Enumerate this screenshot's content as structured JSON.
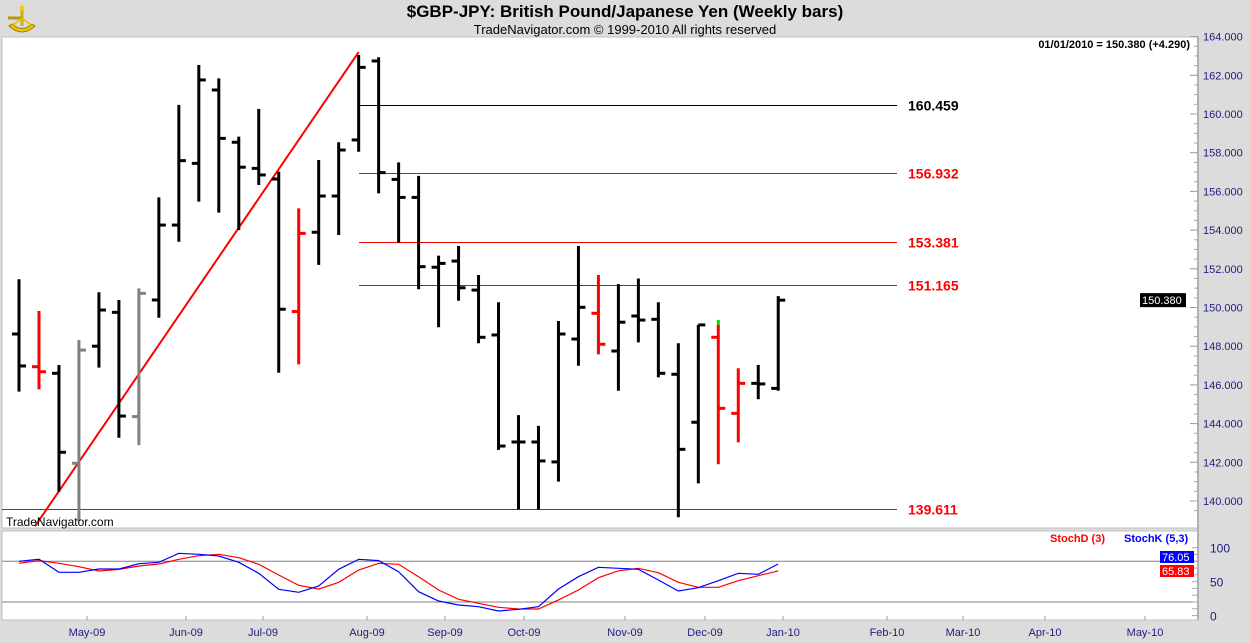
{
  "header": {
    "title": "$GBP-JPY:  British Pound/Japanese Yen  (Weekly bars)",
    "subtitle": "TradeNavigator.com © 1999-2010 All rights reserved",
    "last_quote": "01/01/2010 = 150.380 (+4.290)",
    "watermark": "TradeNavigator.com"
  },
  "chart_data": [
    {
      "type": "ohlc",
      "title": "$GBP-JPY:  British Pound/Japanese Yen  (Weekly bars)",
      "ylim": [
        139,
        164
      ],
      "y_ticks": [
        "164.000",
        "162.000",
        "160.000",
        "158.000",
        "156.000",
        "154.000",
        "152.000",
        "150.000",
        "148.000",
        "146.000",
        "144.000",
        "142.000",
        "140.000"
      ],
      "x_tick_labels": [
        "May-09",
        "Jun-09",
        "Jul-09",
        "Aug-09",
        "Sep-09",
        "Oct-09",
        "Nov-09",
        "Dec-09",
        "Jan-10",
        "Feb-10",
        "Mar-10",
        "Apr-10",
        "May-10"
      ],
      "last_price_label": "150.380",
      "colors": {
        "up": "#000000",
        "down": "#ff0000",
        "neutral": "#808080",
        "trendline": "#ff0000",
        "new_high": "#00dd00"
      },
      "bars": [
        {
          "o": 148.63,
          "h": 151.46,
          "l": 145.65,
          "c": 146.98,
          "color": "#000000"
        },
        {
          "o": 146.94,
          "h": 149.82,
          "l": 145.77,
          "c": 146.68,
          "color": "#ff0000"
        },
        {
          "o": 146.6,
          "h": 147.03,
          "l": 140.48,
          "c": 142.52,
          "color": "#000000"
        },
        {
          "o": 141.95,
          "h": 148.32,
          "l": 138.97,
          "c": 147.8,
          "color": "#808080"
        },
        {
          "o": 148.0,
          "h": 150.79,
          "l": 146.89,
          "c": 149.87,
          "color": "#000000"
        },
        {
          "o": 149.75,
          "h": 150.39,
          "l": 143.27,
          "c": 144.39,
          "color": "#000000"
        },
        {
          "o": 144.36,
          "h": 150.99,
          "l": 142.89,
          "c": 150.73,
          "color": "#808080"
        },
        {
          "o": 150.39,
          "h": 155.69,
          "l": 149.47,
          "c": 154.26,
          "color": "#000000"
        },
        {
          "o": 154.26,
          "h": 160.47,
          "l": 153.4,
          "c": 157.59,
          "color": "#000000"
        },
        {
          "o": 157.45,
          "h": 162.53,
          "l": 155.47,
          "c": 161.76,
          "color": "#000000"
        },
        {
          "o": 161.24,
          "h": 161.84,
          "l": 154.9,
          "c": 158.74,
          "color": "#000000"
        },
        {
          "o": 158.54,
          "h": 158.83,
          "l": 154.0,
          "c": 157.25,
          "color": "#000000"
        },
        {
          "o": 157.19,
          "h": 160.26,
          "l": 156.33,
          "c": 156.85,
          "color": "#000000"
        },
        {
          "o": 156.64,
          "h": 157.02,
          "l": 146.63,
          "c": 149.91,
          "color": "#000000"
        },
        {
          "o": 149.79,
          "h": 155.12,
          "l": 147.06,
          "c": 153.83,
          "color": "#ff0000"
        },
        {
          "o": 153.89,
          "h": 157.62,
          "l": 152.2,
          "c": 155.76,
          "color": "#000000"
        },
        {
          "o": 155.76,
          "h": 158.54,
          "l": 153.75,
          "c": 158.14,
          "color": "#000000"
        },
        {
          "o": 158.66,
          "h": 163.05,
          "l": 158.05,
          "c": 162.41,
          "color": "#000000"
        },
        {
          "o": 162.74,
          "h": 162.93,
          "l": 155.9,
          "c": 156.97,
          "color": "#000000"
        },
        {
          "o": 156.62,
          "h": 157.5,
          "l": 153.35,
          "c": 155.69,
          "color": "#000000"
        },
        {
          "o": 155.69,
          "h": 156.8,
          "l": 150.94,
          "c": 152.11,
          "color": "#000000"
        },
        {
          "o": 152.08,
          "h": 152.68,
          "l": 148.98,
          "c": 152.28,
          "color": "#000000"
        },
        {
          "o": 152.4,
          "h": 153.18,
          "l": 150.35,
          "c": 151.02,
          "color": "#000000"
        },
        {
          "o": 150.9,
          "h": 151.68,
          "l": 148.15,
          "c": 148.46,
          "color": "#000000"
        },
        {
          "o": 148.58,
          "h": 150.27,
          "l": 142.64,
          "c": 142.84,
          "color": "#000000"
        },
        {
          "o": 143.05,
          "h": 144.44,
          "l": 139.57,
          "c": 143.05,
          "color": "#000000"
        },
        {
          "o": 143.05,
          "h": 143.88,
          "l": 139.57,
          "c": 142.07,
          "color": "#000000"
        },
        {
          "o": 142.02,
          "h": 149.3,
          "l": 141.0,
          "c": 148.63,
          "color": "#000000"
        },
        {
          "o": 148.37,
          "h": 153.18,
          "l": 146.99,
          "c": 150.01,
          "color": "#000000"
        },
        {
          "o": 149.7,
          "h": 151.68,
          "l": 147.58,
          "c": 148.1,
          "color": "#ff0000"
        },
        {
          "o": 147.75,
          "h": 151.21,
          "l": 145.7,
          "c": 149.24,
          "color": "#000000"
        },
        {
          "o": 149.56,
          "h": 151.5,
          "l": 148.2,
          "c": 149.35,
          "color": "#000000"
        },
        {
          "o": 149.39,
          "h": 150.27,
          "l": 146.39,
          "c": 146.6,
          "color": "#000000"
        },
        {
          "o": 146.55,
          "h": 148.15,
          "l": 139.16,
          "c": 142.67,
          "color": "#000000"
        },
        {
          "o": 144.07,
          "h": 149.1,
          "l": 140.91,
          "c": 149.1,
          "color": "#000000"
        },
        {
          "o": 148.46,
          "h": 149.1,
          "l": 141.9,
          "c": 144.79,
          "color": "#ff0000"
        },
        {
          "o": 144.53,
          "h": 146.86,
          "l": 143.03,
          "c": 146.08,
          "color": "#ff0000"
        },
        {
          "o": 146.08,
          "h": 147.03,
          "l": 145.26,
          "c": 146.05,
          "color": "#000000"
        },
        {
          "o": 145.82,
          "h": 150.59,
          "l": 145.7,
          "c": 150.38,
          "color": "#000000"
        }
      ],
      "trendline": {
        "from_bar": 0,
        "from_price": 138.8,
        "to_bar": 17,
        "to_price": 163.2
      },
      "fib_levels": [
        {
          "label": "160.459",
          "price": 160.459,
          "color": "#000000"
        },
        {
          "label": "156.932",
          "price": 156.932,
          "color": "#ff0000"
        },
        {
          "label": "153.381",
          "price": 153.381,
          "color": "#ff0000"
        },
        {
          "label": "151.165",
          "price": 151.165,
          "color": "#ff0000"
        },
        {
          "label": "139.611",
          "price": 139.611,
          "color": "#ff0000"
        }
      ]
    },
    {
      "type": "line",
      "ylim": [
        0,
        100
      ],
      "y_ticks": [
        "100",
        "50",
        "0"
      ],
      "reference_lines": [
        80,
        20
      ],
      "series": [
        {
          "name": "StochD (3)",
          "color": "#ff0000",
          "last_label": "65.83",
          "values": [
            77,
            81,
            77,
            72,
            65.7,
            68,
            73,
            76,
            83,
            88.3,
            90.3,
            85.3,
            75.6,
            59.8,
            44.6,
            39,
            49,
            67.2,
            77,
            75.6,
            57.3,
            37.7,
            24,
            18,
            12.2,
            9.7,
            9.7,
            23,
            37.7,
            55.8,
            66,
            69.7,
            63.2,
            49,
            41.6,
            41.6,
            51.4,
            58.8,
            65.83
          ]
        },
        {
          "name": "StochK (5,3)",
          "color": "#0000ff",
          "last_label": "76.05",
          "values": [
            80,
            83,
            63.8,
            63.8,
            68.6,
            68.6,
            76.5,
            78.5,
            91.8,
            90.3,
            87.8,
            78.5,
            62.3,
            38.7,
            34.3,
            43.6,
            68.2,
            83,
            81,
            64.7,
            35.2,
            21.4,
            15.5,
            13,
            6.7,
            9.2,
            13,
            39.2,
            57.3,
            71.1,
            69.7,
            68.2,
            52.4,
            36.2,
            41.1,
            51.4,
            62.3,
            60.8,
            76.05
          ]
        }
      ]
    }
  ]
}
